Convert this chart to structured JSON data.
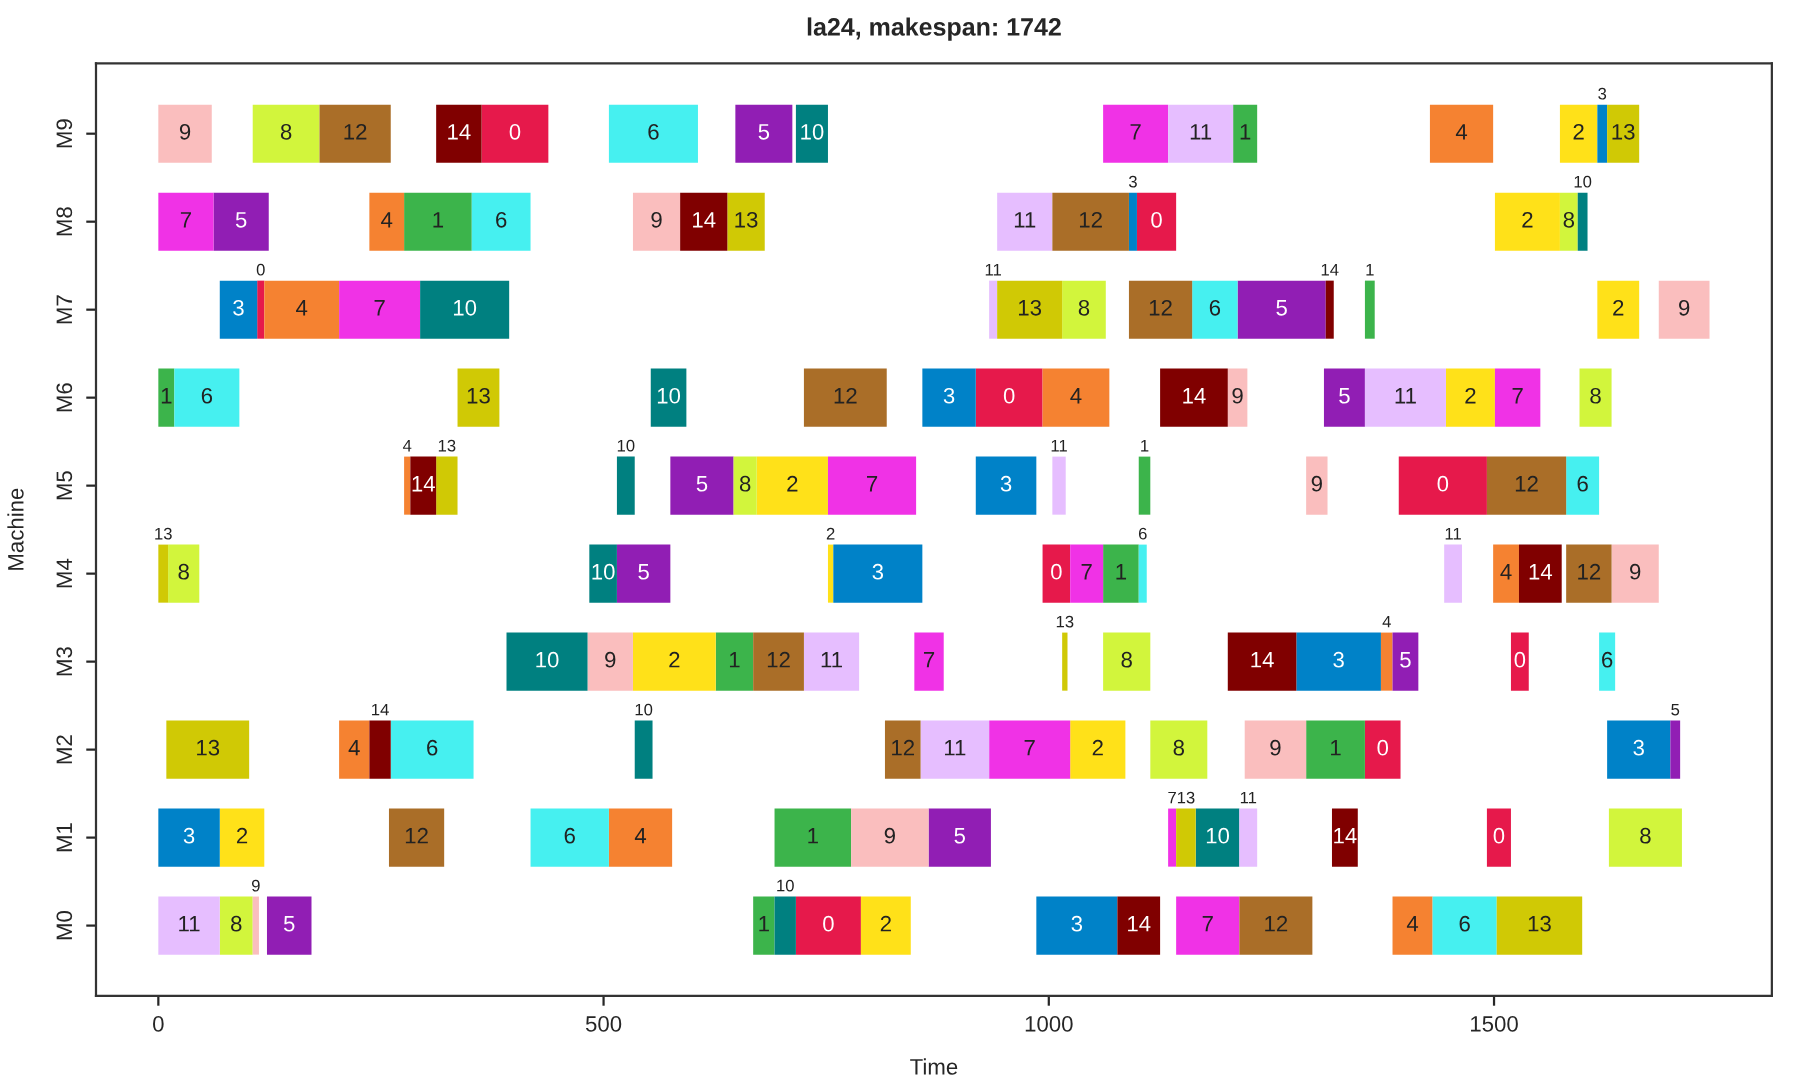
{
  "chart_data": {
    "type": "bar",
    "orientation": "horizontal",
    "title": "la24, makespan: 1742",
    "xlabel": "Time",
    "ylabel": "Machine",
    "categories": [
      "M9",
      "M8",
      "M7",
      "M6",
      "M5",
      "M4",
      "M3",
      "M2",
      "M1",
      "M0"
    ],
    "xlim": [
      -70,
      1812
    ],
    "xticks": [
      0,
      500,
      1000,
      1500
    ],
    "grid": false,
    "legend": false,
    "series": [
      {
        "name": "0",
        "color": "#e6194b",
        "base": [
          363,
          1099,
          111,
          918,
          1393,
          993,
          1519,
          1355,
          1492,
          716
        ],
        "values": [
          75,
          44,
          8,
          75,
          99,
          31,
          20,
          40,
          27,
          73
        ]
      },
      {
        "name": "1",
        "color": "#3cb44b",
        "base": [
          1207,
          276,
          1355,
          0,
          1101,
          1061,
          626,
          1289,
          692,
          668
        ],
        "values": [
          27,
          76,
          11,
          18,
          13,
          40,
          42,
          66,
          86,
          24
        ]
      },
      {
        "name": "2",
        "color": "#ffe119",
        "base": [
          1574,
          1501,
          1616,
          1446,
          672,
          752,
          533,
          1024,
          69,
          789
        ],
        "values": [
          42,
          73,
          47,
          55,
          80,
          6,
          93,
          62,
          50,
          56
        ]
      },
      {
        "name": "3",
        "color": "#0082c8",
        "base": [
          1616,
          1090,
          69,
          858,
          918,
          758,
          1278,
          1627,
          0,
          986
        ],
        "values": [
          11,
          9,
          42,
          60,
          68,
          100,
          95,
          71,
          69,
          91
        ]
      },
      {
        "name": "4",
        "color": "#f58231",
        "base": [
          1428,
          237,
          119,
          993,
          276,
          1499,
          1373,
          203,
          506,
          1386
        ],
        "values": [
          71,
          39,
          84,
          75,
          7,
          29,
          13,
          34,
          71,
          45
        ]
      },
      {
        "name": "5",
        "color": "#911eb4",
        "base": [
          648,
          62,
          1212,
          1309,
          575,
          515,
          1386,
          1698,
          865,
          122
        ],
        "values": [
          64,
          62,
          99,
          46,
          71,
          60,
          29,
          11,
          70,
          50
        ]
      },
      {
        "name": "6",
        "color": "#46f0f0",
        "base": [
          506,
          352,
          1161,
          18,
          1581,
          1101,
          1618,
          261,
          418,
          1431
        ],
        "values": [
          100,
          66,
          51,
          73,
          37,
          9,
          18,
          93,
          88,
          72
        ]
      },
      {
        "name": "7",
        "color": "#f032e6",
        "base": [
          1061,
          0,
          203,
          1501,
          752,
          1024,
          849,
          933,
          1134,
          1143
        ],
        "values": [
          73,
          62,
          91,
          51,
          99,
          37,
          33,
          91,
          9,
          71
        ]
      },
      {
        "name": "8",
        "color": "#d2f53c",
        "base": [
          106,
          1574,
          1015,
          1596,
          646,
          11,
          1061,
          1114,
          1629,
          69
        ],
        "values": [
          75,
          20,
          49,
          36,
          26,
          35,
          53,
          64,
          82,
          37
        ]
      },
      {
        "name": "9",
        "color": "#fabebe",
        "base": [
          0,
          533,
          1685,
          1201,
          1289,
          1632,
          482,
          1220,
          778,
          106
        ],
        "values": [
          60,
          53,
          57,
          22,
          24,
          53,
          51,
          69,
          87,
          7
        ]
      },
      {
        "name": "10",
        "color": "#008080",
        "base": [
          716,
          1594,
          294,
          553,
          515,
          484,
          391,
          535,
          1165,
          692
        ],
        "values": [
          36,
          11,
          100,
          40,
          20,
          31,
          91,
          20,
          49,
          24
        ]
      },
      {
        "name": "11",
        "color": "#e6beff",
        "base": [
          1134,
          942,
          933,
          1355,
          1004,
          1444,
          725,
          856,
          1214,
          0
        ],
        "values": [
          73,
          62,
          9,
          91,
          15,
          20,
          62,
          77,
          20,
          69
        ]
      },
      {
        "name": "12",
        "color": "#aa6e28",
        "base": [
          181,
          1004,
          1090,
          725,
          1492,
          1581,
          668,
          816,
          259,
          1214
        ],
        "values": [
          80,
          86,
          71,
          93,
          89,
          51,
          57,
          40,
          62,
          82
        ]
      },
      {
        "name": "13",
        "color": "#d0c905",
        "base": [
          1627,
          639,
          942,
          336,
          312,
          0,
          1015,
          9,
          1143,
          1503
        ],
        "values": [
          36,
          42,
          73,
          47,
          24,
          11,
          6,
          93,
          22,
          96
        ]
      },
      {
        "name": "14",
        "color": "#800000",
        "base": [
          312,
          586,
          1311,
          1125,
          283,
          1528,
          1201,
          237,
          1318,
          1077
        ],
        "values": [
          51,
          53,
          9,
          76,
          29,
          48,
          77,
          24,
          29,
          48
        ]
      }
    ]
  }
}
